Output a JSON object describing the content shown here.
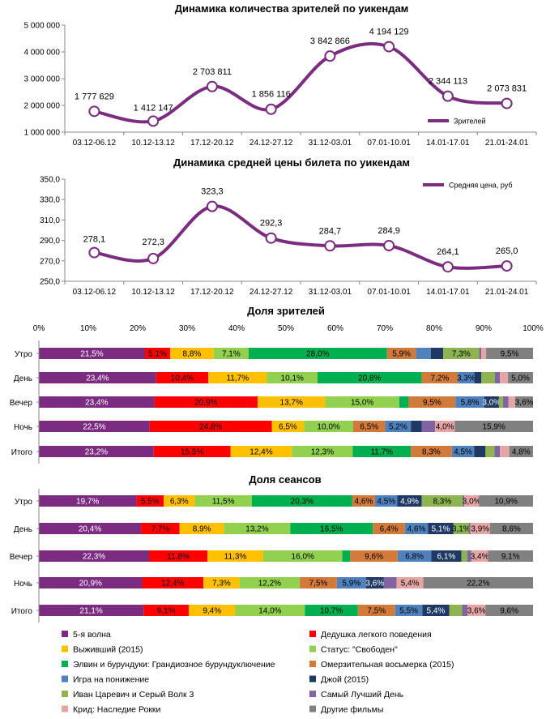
{
  "colors": {
    "Пятая волна": "#7B2C80",
    "5-я волна": "#7B2C80",
    "Дедушка легкого поведения": "#FF0000",
    "Выживший (2015)": "#FFC000",
    "Статус: \"Свободен\"": "#92D050",
    "Элвин и бурундуки: Грандиозное бурундуключение": "#00B050",
    "Омерзительная восьмерка (2015)": "#D27A3A",
    "Игра на понижение": "#4F81BD",
    "Джой (2015)": "#1F3864",
    "Иван Царевич и Серый Волк 3": "#8DB451",
    "Самый Лучший День": "#8064A2",
    "Крид: Наследие Рокки": "#E6A5A5",
    "Другие фильмы": "#808080",
    "line": "#7B2C80"
  },
  "chart_data": [
    {
      "type": "line",
      "title": "Динамика количества зрителей по уикендам",
      "categories": [
        "03.12-06.12",
        "10.12-13.12",
        "17.12-20.12",
        "24.12-27.12",
        "31.12-03.01",
        "07.01-10.01",
        "14.01-17.01",
        "21.01-24.01"
      ],
      "series": [
        {
          "name": "Зрителей",
          "values": [
            1777629,
            1412147,
            2703811,
            1856116,
            3842866,
            4194129,
            2344113,
            2073831
          ]
        }
      ],
      "value_labels": [
        "1 777 629",
        "1 412 147",
        "2 703 811",
        "1 856 116",
        "3 842 866",
        "4 194 129",
        "2 344 113",
        "2 073 831"
      ],
      "ylim": [
        1000000,
        5000000
      ],
      "yticks": [
        1000000,
        2000000,
        3000000,
        4000000,
        5000000
      ],
      "ytick_labels": [
        "1 000 000",
        "2 000 000",
        "3 000 000",
        "4 000 000",
        "5 000 000"
      ],
      "legend": "Зрителей",
      "legend_position": "right"
    },
    {
      "type": "line",
      "title": "Динамика средней цены билета по уикендам",
      "categories": [
        "03.12-06.12",
        "10.12-13.12",
        "17.12-20.12",
        "24.12-27.12",
        "31.12-03.01",
        "07.01-10.01",
        "14.01-17.01",
        "21.01-24.01"
      ],
      "series": [
        {
          "name": "Средняя цена, руб",
          "values": [
            278.1,
            272.3,
            323.3,
            292.3,
            284.7,
            284.9,
            264.1,
            265.0
          ]
        }
      ],
      "value_labels": [
        "278,1",
        "272,3",
        "323,3",
        "292,3",
        "284,7",
        "284,9",
        "264,1",
        "265,0"
      ],
      "ylim": [
        250,
        350
      ],
      "yticks": [
        250,
        270,
        290,
        310,
        330,
        350
      ],
      "ytick_labels": [
        "250,0",
        "270,0",
        "290,0",
        "310,0",
        "330,0",
        "350,0"
      ],
      "legend": "Средняя цена, руб",
      "legend_position": "top-right"
    },
    {
      "type": "bar",
      "orientation": "horizontal-stacked-100",
      "title": "Доля зрителей",
      "xtick_labels": [
        "0%",
        "10%",
        "20%",
        "30%",
        "40%",
        "50%",
        "60%",
        "70%",
        "80%",
        "90%",
        "100%"
      ],
      "categories": [
        "Утро",
        "День",
        "Вечер",
        "Ночь",
        "Итого"
      ],
      "series_names": [
        "5-я волна",
        "Дедушка легкого поведения",
        "Выживший (2015)",
        "Статус: \"Свободен\"",
        "Элвин и бурундуки: Грандиозное бурундуключение",
        "Омерзительная восьмерка (2015)",
        "Игра на понижение",
        "Джой (2015)",
        "Иван Царевич и Серый Волк 3",
        "Самый Лучший День",
        "Крид: Наследие Рокки",
        "Другие фильмы"
      ],
      "rows": [
        {
          "category": "Утро",
          "values": [
            21.5,
            5.1,
            8.8,
            7.1,
            28.0,
            5.9,
            3.0,
            2.5,
            7.3,
            0.4,
            1.0,
            9.5
          ],
          "labels": [
            "21,5%",
            "5,1%",
            "8,8%",
            "7,1%",
            "28,0%",
            "5,9%",
            "",
            "",
            "7,3%",
            "",
            "",
            "9,5%"
          ]
        },
        {
          "category": "День",
          "values": [
            23.4,
            10.4,
            11.7,
            10.1,
            20.8,
            7.2,
            3.3,
            1.4,
            2.7,
            1.0,
            1.6,
            5.0
          ],
          "labels": [
            "23,4%",
            "10,4%",
            "11,7%",
            "10,1%",
            "20,8%",
            "7,2%",
            "3,3%",
            "",
            "",
            "",
            "",
            "5,0%"
          ]
        },
        {
          "category": "Вечер",
          "values": [
            23.4,
            20.9,
            13.7,
            15.0,
            1.9,
            9.5,
            5.8,
            3.0,
            0.8,
            1.1,
            1.4,
            3.6
          ],
          "labels": [
            "23,4%",
            "20,9%",
            "13,7%",
            "15,0%",
            "",
            "9,5%",
            "5,8%",
            "3,0%",
            "",
            "",
            "",
            "3,6%"
          ]
        },
        {
          "category": "Ночь",
          "values": [
            22.5,
            24.8,
            6.5,
            10.0,
            0.0,
            6.5,
            5.2,
            2.2,
            0.0,
            2.7,
            4.0,
            15.9
          ],
          "labels": [
            "22,5%",
            "24,8%",
            "6,5%",
            "10,0%",
            "",
            "6,5%",
            "5,2%",
            "",
            "",
            "",
            "4,0%",
            "15,9%"
          ]
        },
        {
          "category": "Итого",
          "values": [
            23.2,
            15.5,
            12.4,
            12.3,
            11.7,
            8.3,
            4.5,
            2.3,
            1.8,
            1.1,
            1.9,
            4.8
          ],
          "labels": [
            "23,2%",
            "15,5%",
            "12,4%",
            "12,3%",
            "11,7%",
            "8,3%",
            "4,5%",
            "",
            "",
            "",
            "",
            "4,8%"
          ]
        }
      ]
    },
    {
      "type": "bar",
      "orientation": "horizontal-stacked-100",
      "title": "Доля сеансов",
      "categories": [
        "Утро",
        "День",
        "Вечер",
        "Ночь",
        "Итого"
      ],
      "series_names": [
        "5-я волна",
        "Дедушка легкого поведения",
        "Выживший (2015)",
        "Статус: \"Свободен\"",
        "Элвин и бурундуки: Грандиозное бурундуключение",
        "Омерзительная восьмерка (2015)",
        "Игра на понижение",
        "Джой (2015)",
        "Иван Царевич и Серый Волк 3",
        "Самый Лучший День",
        "Крид: Наследие Рокки",
        "Другие фильмы"
      ],
      "rows": [
        {
          "category": "Утро",
          "values": [
            19.7,
            5.5,
            6.3,
            11.5,
            20.3,
            4.6,
            4.5,
            4.9,
            8.3,
            0.3,
            3.0,
            10.9
          ],
          "labels": [
            "19,7%",
            "5,5%",
            "6,3%",
            "11,5%",
            "20,3%",
            "4,6%",
            "4,5%",
            "4,9%",
            "8,3%",
            "",
            "3,0%",
            "10,9%"
          ]
        },
        {
          "category": "День",
          "values": [
            20.4,
            7.7,
            8.9,
            13.2,
            16.5,
            6.4,
            4.6,
            5.1,
            3.1,
            0.3,
            3.9,
            8.6
          ],
          "labels": [
            "20,4%",
            "7,7%",
            "8,9%",
            "13,2%",
            "16,5%",
            "6,4%",
            "4,6%",
            "5,1%",
            "3,1%",
            "",
            "3,9%",
            "8,6%"
          ]
        },
        {
          "category": "Вечер",
          "values": [
            22.3,
            11.8,
            11.3,
            16.0,
            1.6,
            9.6,
            6.8,
            6.1,
            1.2,
            0.8,
            3.4,
            9.1
          ],
          "labels": [
            "22,3%",
            "11,8%",
            "11,3%",
            "16,0%",
            "",
            "9,6%",
            "6,8%",
            "6,1%",
            "",
            "",
            "3,4%",
            "9,1%"
          ]
        },
        {
          "category": "Ночь",
          "values": [
            20.9,
            12.4,
            7.3,
            12.2,
            0.0,
            7.5,
            5.9,
            3.6,
            0.0,
            2.6,
            5.4,
            22.2
          ],
          "labels": [
            "20,9%",
            "12,4%",
            "7,3%",
            "12,2%",
            "",
            "7,5%",
            "5,9%",
            "3,6%",
            "",
            "",
            "5,4%",
            "22,2%"
          ]
        },
        {
          "category": "Итого",
          "values": [
            21.1,
            9.1,
            9.4,
            14.0,
            10.7,
            7.5,
            5.5,
            5.4,
            2.6,
            1.1,
            3.6,
            9.6
          ],
          "labels": [
            "21,1%",
            "9,1%",
            "9,4%",
            "14,0%",
            "10,7%",
            "7,5%",
            "5,5%",
            "5,4%",
            "",
            "",
            "3,6%",
            "9,6%"
          ]
        }
      ]
    }
  ],
  "legend_items": [
    "5-я волна",
    "Дедушка легкого поведения",
    "Выживший (2015)",
    "Статус: \"Свободен\"",
    "Элвин и бурундуки: Грандиозное бурундуключение",
    "Омерзительная восьмерка (2015)",
    "Игра на понижение",
    "Джой (2015)",
    "Иван Царевич и Серый Волк 3",
    "Самый Лучший День",
    "Крид: Наследие Рокки",
    "Другие фильмы"
  ]
}
